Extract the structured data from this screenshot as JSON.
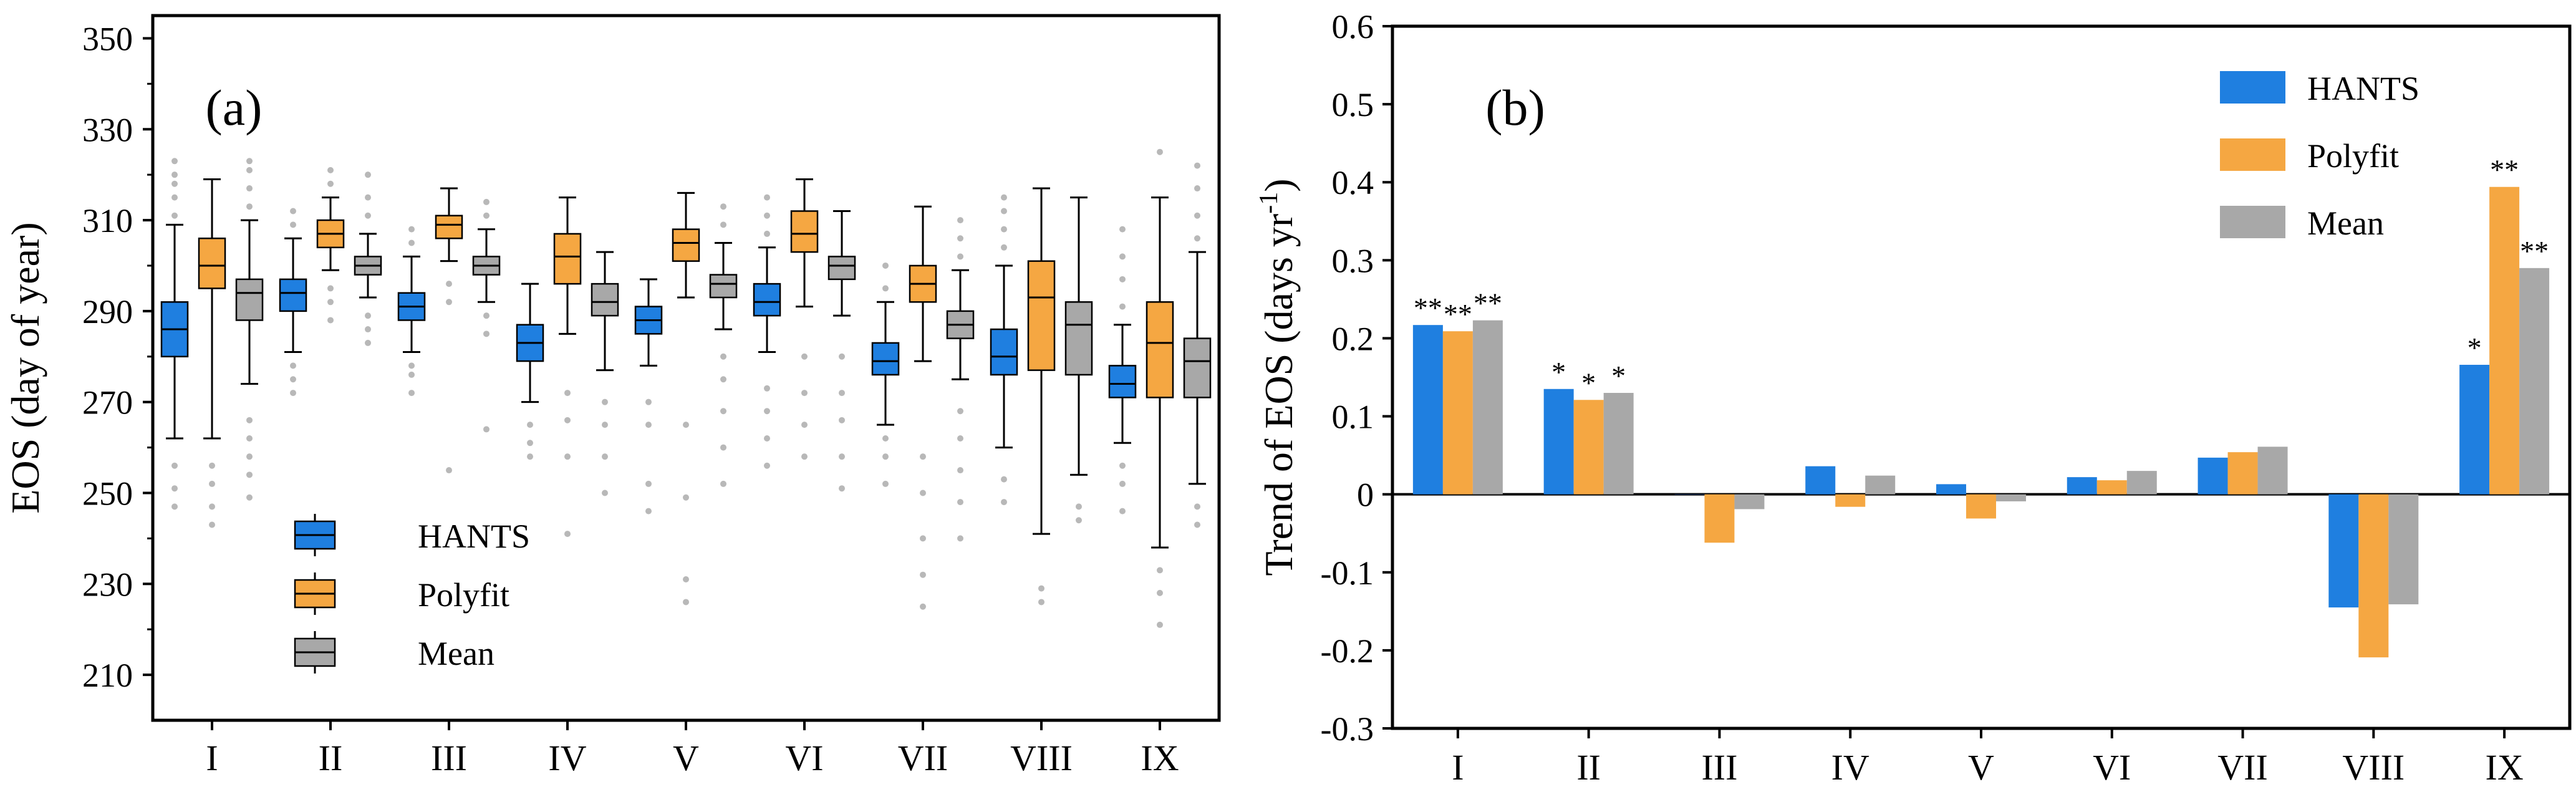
{
  "chart_data": [
    {
      "type": "box",
      "panel_label": "(a)",
      "ylabel": "EOS (day of year)",
      "xlabel": "",
      "categories": [
        "I",
        "II",
        "III",
        "IV",
        "V",
        "VI",
        "VII",
        "VIII",
        "IX"
      ],
      "ylim": [
        200,
        355
      ],
      "yticks": [
        210,
        230,
        250,
        270,
        290,
        310,
        330,
        350
      ],
      "legend": {
        "position": "bottom-left",
        "entries": [
          "HANTS",
          "Polyfit",
          "Mean"
        ]
      },
      "series": [
        {
          "name": "HANTS",
          "color": "#1f7fe0",
          "boxes": [
            {
              "min": 262,
              "q1": 280,
              "median": 286,
              "q3": 292,
              "max": 309,
              "outliers_low": [
                247,
                251,
                256
              ],
              "outliers_high": [
                311,
                315,
                318,
                320,
                323
              ]
            },
            {
              "min": 281,
              "q1": 290,
              "median": 294,
              "q3": 297,
              "max": 306,
              "outliers_low": [
                272,
                275,
                278
              ],
              "outliers_high": [
                309,
                312
              ]
            },
            {
              "min": 281,
              "q1": 288,
              "median": 291,
              "q3": 294,
              "max": 302,
              "outliers_low": [
                272,
                276,
                278
              ],
              "outliers_high": [
                305,
                308
              ]
            },
            {
              "min": 270,
              "q1": 279,
              "median": 283,
              "q3": 287,
              "max": 296,
              "outliers_low": [
                258,
                261,
                265
              ],
              "outliers_high": []
            },
            {
              "min": 278,
              "q1": 285,
              "median": 288,
              "q3": 291,
              "max": 297,
              "outliers_low": [
                246,
                252,
                265,
                270
              ],
              "outliers_high": []
            },
            {
              "min": 281,
              "q1": 289,
              "median": 292,
              "q3": 296,
              "max": 304,
              "outliers_low": [
                256,
                262,
                268,
                273
              ],
              "outliers_high": [
                307,
                311,
                315
              ]
            },
            {
              "min": 265,
              "q1": 276,
              "median": 279,
              "q3": 283,
              "max": 292,
              "outliers_low": [
                252,
                258,
                262
              ],
              "outliers_high": [
                295,
                300
              ]
            },
            {
              "min": 260,
              "q1": 276,
              "median": 280,
              "q3": 286,
              "max": 300,
              "outliers_low": [
                248,
                253
              ],
              "outliers_high": [
                304,
                308,
                312,
                315
              ]
            },
            {
              "min": 261,
              "q1": 271,
              "median": 274,
              "q3": 278,
              "max": 287,
              "outliers_low": [
                246,
                252,
                256
              ],
              "outliers_high": [
                291,
                297,
                302,
                308
              ]
            }
          ]
        },
        {
          "name": "Polyfit",
          "color": "#f5a742",
          "boxes": [
            {
              "min": 262,
              "q1": 295,
              "median": 300,
              "q3": 306,
              "max": 319,
              "outliers_low": [
                243,
                247,
                252,
                256
              ],
              "outliers_high": []
            },
            {
              "min": 299,
              "q1": 304,
              "median": 307,
              "q3": 310,
              "max": 315,
              "outliers_low": [
                288,
                292,
                295
              ],
              "outliers_high": [
                318,
                321
              ]
            },
            {
              "min": 301,
              "q1": 306,
              "median": 309,
              "q3": 311,
              "max": 317,
              "outliers_low": [
                255,
                292,
                296
              ],
              "outliers_high": []
            },
            {
              "min": 285,
              "q1": 296,
              "median": 302,
              "q3": 307,
              "max": 315,
              "outliers_low": [
                241,
                258,
                266,
                272
              ],
              "outliers_high": []
            },
            {
              "min": 293,
              "q1": 301,
              "median": 305,
              "q3": 308,
              "max": 316,
              "outliers_low": [
                226,
                231,
                249,
                265
              ],
              "outliers_high": []
            },
            {
              "min": 291,
              "q1": 303,
              "median": 307,
              "q3": 312,
              "max": 319,
              "outliers_low": [
                258,
                265,
                272,
                280
              ],
              "outliers_high": []
            },
            {
              "min": 279,
              "q1": 292,
              "median": 296,
              "q3": 300,
              "max": 313,
              "outliers_low": [
                225,
                232,
                240,
                250,
                258
              ],
              "outliers_high": []
            },
            {
              "min": 241,
              "q1": 277,
              "median": 293,
              "q3": 301,
              "max": 317,
              "outliers_low": [
                226,
                229
              ],
              "outliers_high": []
            },
            {
              "min": 238,
              "q1": 271,
              "median": 283,
              "q3": 292,
              "max": 315,
              "outliers_low": [
                221,
                228,
                233
              ],
              "outliers_high": [
                325
              ]
            }
          ]
        },
        {
          "name": "Mean",
          "color": "#a8a8a8",
          "boxes": [
            {
              "min": 274,
              "q1": 288,
              "median": 294,
              "q3": 297,
              "max": 310,
              "outliers_low": [
                249,
                254,
                258,
                262,
                266
              ],
              "outliers_high": [
                313,
                317,
                321,
                323
              ]
            },
            {
              "min": 293,
              "q1": 298,
              "median": 300,
              "q3": 302,
              "max": 307,
              "outliers_low": [
                283,
                286,
                289
              ],
              "outliers_high": [
                311,
                315,
                320
              ]
            },
            {
              "min": 292,
              "q1": 298,
              "median": 300,
              "q3": 302,
              "max": 308,
              "outliers_low": [
                264,
                285,
                289
              ],
              "outliers_high": [
                311,
                314
              ]
            },
            {
              "min": 277,
              "q1": 289,
              "median": 292,
              "q3": 296,
              "max": 303,
              "outliers_low": [
                250,
                258,
                265,
                270
              ],
              "outliers_high": []
            },
            {
              "min": 286,
              "q1": 293,
              "median": 296,
              "q3": 298,
              "max": 305,
              "outliers_low": [
                252,
                260,
                268,
                275,
                280
              ],
              "outliers_high": [
                309,
                313
              ]
            },
            {
              "min": 289,
              "q1": 297,
              "median": 300,
              "q3": 302,
              "max": 312,
              "outliers_low": [
                251,
                258,
                266,
                272,
                280
              ],
              "outliers_high": []
            },
            {
              "min": 275,
              "q1": 284,
              "median": 287,
              "q3": 290,
              "max": 299,
              "outliers_low": [
                240,
                248,
                255,
                262,
                268
              ],
              "outliers_high": [
                302,
                306,
                310
              ]
            },
            {
              "min": 254,
              "q1": 276,
              "median": 287,
              "q3": 292,
              "max": 315,
              "outliers_low": [
                244,
                247
              ],
              "outliers_high": []
            },
            {
              "min": 252,
              "q1": 271,
              "median": 279,
              "q3": 284,
              "max": 303,
              "outliers_low": [
                243,
                247
              ],
              "outliers_high": [
                306,
                311,
                317,
                322
              ]
            }
          ]
        }
      ]
    },
    {
      "type": "bar",
      "panel_label": "(b)",
      "ylabel_main": "Trend of EOS (days yr",
      "ylabel_sup": "-1",
      "ylabel_close": ")",
      "xlabel": "",
      "categories": [
        "I",
        "II",
        "III",
        "IV",
        "V",
        "VI",
        "VII",
        "VIII",
        "IX"
      ],
      "ylim": [
        -0.3,
        0.6
      ],
      "yticks": [
        -0.3,
        -0.2,
        -0.1,
        0,
        0.1,
        0.2,
        0.3,
        0.4,
        0.5,
        0.6
      ],
      "ytick_labels": [
        "-0.3",
        "-0.2",
        "-0.1",
        "0",
        "0.1",
        "0.2",
        "0.3",
        "0.4",
        "0.5",
        "0.6"
      ],
      "legend": {
        "position": "top-right",
        "entries": [
          "HANTS",
          "Polyfit",
          "Mean"
        ]
      },
      "series": [
        {
          "name": "HANTS",
          "color": "#1f7fe0",
          "values": [
            0.217,
            0.135,
            0.0,
            0.036,
            0.013,
            0.022,
            0.047,
            -0.145,
            0.166
          ],
          "annotations": [
            "**",
            "*",
            "",
            "",
            "",
            "",
            "",
            "",
            "*"
          ]
        },
        {
          "name": "Polyfit",
          "color": "#f5a742",
          "values": [
            0.209,
            0.121,
            -0.062,
            -0.016,
            -0.031,
            0.018,
            0.054,
            -0.209,
            0.394
          ],
          "annotations": [
            "**",
            "*",
            "",
            "",
            "",
            "",
            "",
            "",
            "**"
          ]
        },
        {
          "name": "Mean",
          "color": "#a8a8a8",
          "values": [
            0.223,
            0.13,
            -0.019,
            0.024,
            -0.009,
            0.03,
            0.061,
            -0.141,
            0.29
          ],
          "annotations": [
            "**",
            "*",
            "",
            "",
            "",
            "",
            "",
            "",
            "**"
          ]
        }
      ]
    }
  ]
}
